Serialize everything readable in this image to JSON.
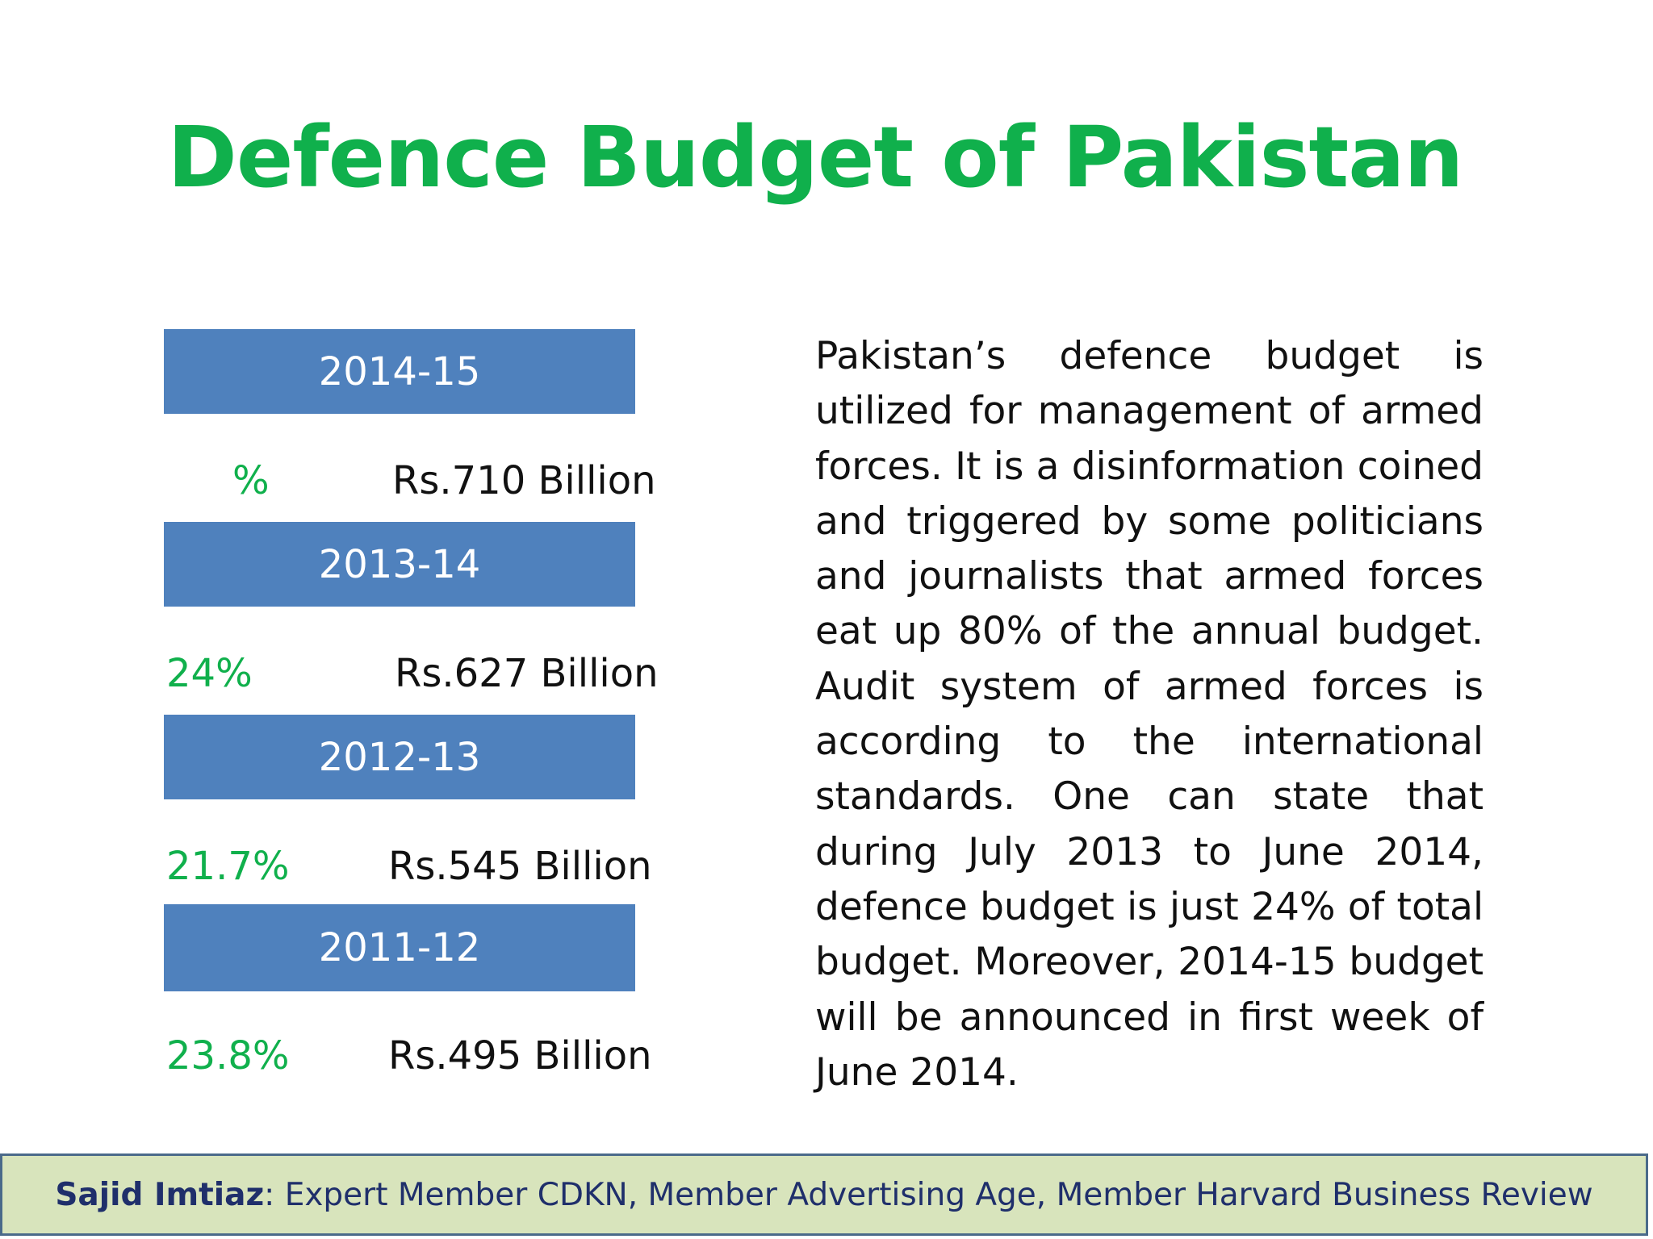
{
  "title": "Defence Budget of Pakistan",
  "budget_rows": [
    {
      "year": "2014-15",
      "percent": "%",
      "amount": "Rs.710 Billion"
    },
    {
      "year": "2013-14",
      "percent": "24%",
      "amount": "Rs.627 Billion"
    },
    {
      "year": "2012-13",
      "percent": "21.7%",
      "amount": "Rs.545 Billion"
    },
    {
      "year": "2011-12",
      "percent": "23.8%",
      "amount": "Rs.495 Billion"
    }
  ],
  "body_text": "Pakistan’s defence budget is utilized for management of armed forces. It is a disinformation coined and triggered by some politicians and journalists that armed forces eat up 80% of the annual budget. Audit system of armed forces is according to the international standards. One can state that during July 2013 to June 2014, defence budget is just 24% of total budget. Moreover, 2014-15 budget will be announced in first week of June 2014.",
  "footer": {
    "author": "Sajid Imtiaz",
    "separator": ":",
    "credentials": " Expert Member CDKN, Member Advertising Age, Member Harvard Business Review"
  },
  "colors": {
    "title_green": "#10b04c",
    "bar_blue": "#4f81bd",
    "footer_bg": "#d8e4bc",
    "footer_text": "#1f2f6b"
  }
}
